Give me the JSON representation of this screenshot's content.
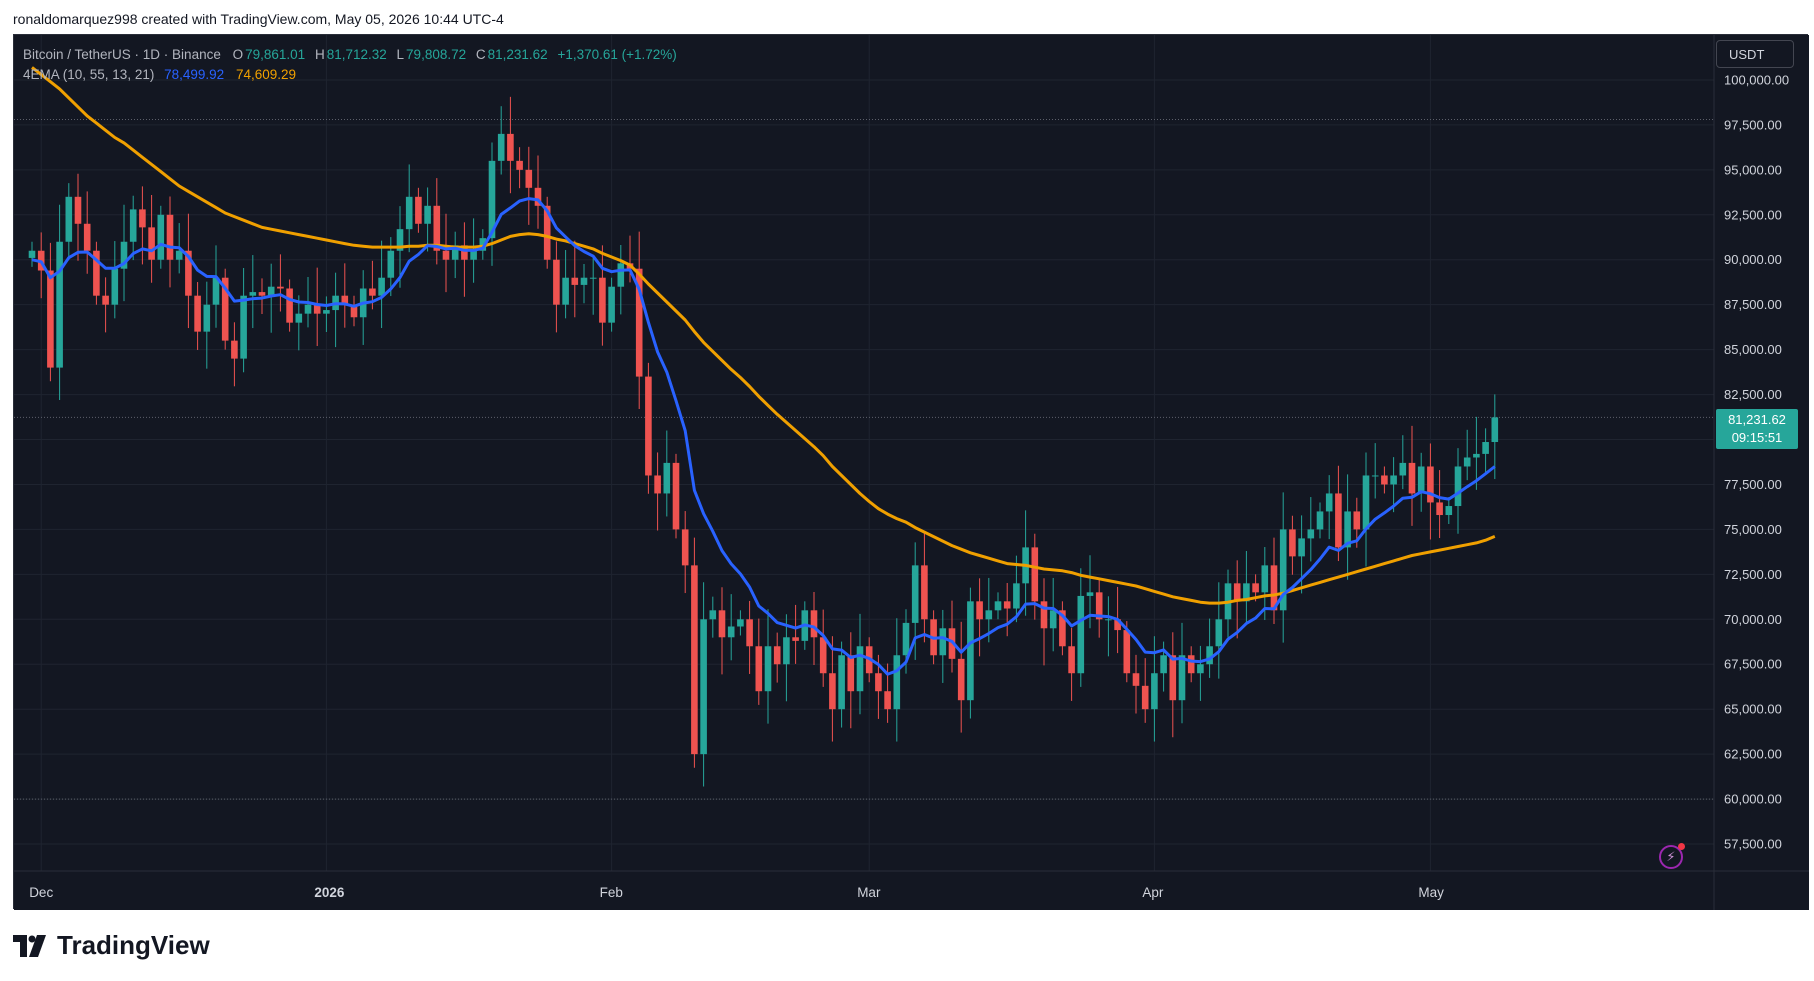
{
  "header": {
    "attribution": "ronaldomarquez998 created with TradingView.com, May 05, 2026 10:44 UTC-4"
  },
  "legend": {
    "symbol": "Bitcoin / TetherUS · 1D · Binance",
    "open_label": "O",
    "open": "79,861.01",
    "high_label": "H",
    "high": "81,712.32",
    "low_label": "L",
    "low": "79,808.72",
    "close_label": "C",
    "close": "81,231.62",
    "change": "+1,370.61 (+1.72%)",
    "indicator": "4EMA (10, 55, 13, 21)",
    "ema_fast": "78,499.92",
    "ema_slow": "74,609.29"
  },
  "currency": "USDT",
  "last_price": {
    "price": "81,231.62",
    "countdown": "09:15:51"
  },
  "brand": {
    "name": "TradingView"
  },
  "colors": {
    "background": "#131722",
    "grid": "#1f2430",
    "up": "#26a69a",
    "down": "#ef5350",
    "ema_fast": "#2962ff",
    "ema_slow": "#f0a000",
    "axis_text": "#d1d4dc"
  },
  "chart_data": {
    "type": "candlestick",
    "ylim": [
      56000,
      102500
    ],
    "y_ticks": [
      "100,000.00",
      "97,500.00",
      "95,000.00",
      "92,500.00",
      "90,000.00",
      "87,500.00",
      "85,000.00",
      "82,500.00",
      "80,000.00",
      "77,500.00",
      "75,000.00",
      "72,500.00",
      "70,000.00",
      "67,500.00",
      "65,000.00",
      "62,500.00",
      "60,000.00",
      "57,500.00"
    ],
    "y_tick_values": [
      100000,
      97500,
      95000,
      92500,
      90000,
      87500,
      85000,
      82500,
      80000,
      77500,
      75000,
      72500,
      70000,
      67500,
      65000,
      62500,
      60000,
      57500
    ],
    "x_labels": [
      {
        "label": "Dec",
        "index": 1
      },
      {
        "label": "2026",
        "index": 32
      },
      {
        "label": "Feb",
        "index": 63
      },
      {
        "label": "Mar",
        "index": 91
      },
      {
        "label": "Apr",
        "index": 122
      },
      {
        "label": "May",
        "index": 152
      }
    ],
    "dotted_levels": [
      97800,
      81231.62,
      60000
    ],
    "closes": [
      90500,
      89400,
      84000,
      91000,
      93500,
      92000,
      90500,
      88000,
      87500,
      89500,
      91000,
      92800,
      91800,
      90000,
      92500,
      90000,
      90500,
      88000,
      86000,
      87500,
      89000,
      85500,
      84500,
      88000,
      88200,
      88000,
      88500,
      88400,
      86500,
      87000,
      87500,
      87000,
      87200,
      88000,
      87500,
      86800,
      88400,
      88000,
      89000,
      90500,
      91700,
      93500,
      92000,
      93000,
      90500,
      90000,
      90800,
      90000,
      90500,
      91200,
      95500,
      97000,
      95500,
      95000,
      94000,
      93000,
      90000,
      87500,
      89000,
      88600,
      89000,
      89000,
      86500,
      88500,
      89800,
      89500,
      83500,
      78000,
      77000,
      78700,
      75000,
      73000,
      62500,
      70000,
      70500,
      69000,
      69600,
      70000,
      68500,
      66000,
      68500,
      67500,
      69000,
      68800,
      70500,
      69000,
      67000,
      65000,
      68000,
      66000,
      68500,
      67000,
      66000,
      65000,
      68000,
      69800,
      73000,
      70000,
      68000,
      69500,
      67800,
      65500,
      71000,
      70000,
      70500,
      71000,
      70600,
      72000,
      74000,
      71000,
      69500,
      70500,
      68500,
      67000,
      71300,
      71500,
      70000,
      70000,
      69400,
      67000,
      66300,
      65000,
      67000,
      68000,
      65500,
      68000,
      67000,
      67500,
      68500,
      70000,
      72000,
      71000,
      72000,
      71500,
      73000,
      70500,
      75000,
      73500,
      74500,
      75000,
      76000,
      77000,
      74000,
      76000,
      75000,
      78000,
      78000,
      77500,
      78000,
      78700,
      77000,
      78500,
      76500,
      75800,
      76300,
      78500,
      79000,
      79200,
      79861.01,
      81231.62
    ],
    "ema_fast": [
      90000,
      89886,
      88998,
      89362,
      90114,
      90412,
      90428,
      89987,
      89530,
      89525,
      89793,
      90340,
      90605,
      90495,
      90860,
      90704,
      90667,
      90182,
      89422,
      89073,
      89059,
      88412,
      87700,
      87754,
      87835,
      87865,
      87981,
      88057,
      87792,
      87648,
      87621,
      87508,
      87452,
      87552,
      87541,
      87407,
      87588,
      87663,
      87906,
      88378,
      89009,
      89917,
      90296,
      90788,
      90736,
      90603,
      90639,
      90523,
      90519,
      90643,
      91527,
      92522,
      92882,
      93267,
      93400,
      93327,
      92722,
      91772,
      91268,
      90783,
      90459,
      90194,
      89522,
      89336,
      89420,
      89435,
      88356,
      86518,
      84870,
      83749,
      82158,
      80493,
      77176,
      75871,
      74895,
      73824,
      73083,
      72523,
      71791,
      70738,
      70331,
      69816,
      69667,
      69509,
      69689,
      69564,
      69098,
      68353,
      68289,
      67873,
      68001,
      67819,
      67488,
      66945,
      67137,
      67621,
      68963,
      69152,
      68943,
      68980,
      68765,
      68171,
      68685,
      68925,
      69211,
      69536,
      69729,
      70142,
      70844,
      70873,
      70623,
      70601,
      70219,
      69634,
      69939,
      70223,
      70183,
      70150,
      69996,
      69452,
      68878,
      68173,
      68141,
      68298,
      67789,
      67828,
      67677,
      67645,
      67800,
      68200,
      68891,
      69274,
      69771,
      70067,
      70600,
      70582,
      71385,
      71770,
      72266,
      72763,
      73352,
      74015,
      73831,
      74225,
      74366,
      75027,
      75568,
      75919,
      76297,
      76736,
      76784,
      77096,
      76988,
      76772,
      76687,
      77017,
      77377,
      77708,
      78098,
      78499.92
    ],
    "ema_slow": [
      100700,
      100300,
      99900,
      99500,
      99000,
      98500,
      98000,
      97600,
      97200,
      96800,
      96500,
      96100,
      95700,
      95300,
      94900,
      94500,
      94100,
      93800,
      93500,
      93200,
      92900,
      92600,
      92400,
      92200,
      92000,
      91800,
      91700,
      91600,
      91500,
      91400,
      91300,
      91200,
      91100,
      91000,
      90900,
      90800,
      90750,
      90700,
      90700,
      90700,
      90700,
      90750,
      90750,
      90800,
      90800,
      90750,
      90700,
      90700,
      90700,
      90750,
      90900,
      91100,
      91300,
      91400,
      91450,
      91400,
      91300,
      91150,
      91050,
      90900,
      90750,
      90600,
      90350,
      90150,
      89950,
      89700,
      89200,
      88650,
      88150,
      87650,
      87150,
      86650,
      86000,
      85400,
      84900,
      84400,
      83900,
      83450,
      82950,
      82400,
      81900,
      81400,
      80950,
      80500,
      80050,
      79600,
      79100,
      78500,
      78000,
      77500,
      77000,
      76550,
      76150,
      75850,
      75600,
      75400,
      75100,
      74850,
      74600,
      74350,
      74100,
      73900,
      73700,
      73550,
      73400,
      73250,
      73100,
      73050,
      73000,
      72900,
      72800,
      72750,
      72700,
      72600,
      72450,
      72350,
      72250,
      72150,
      72050,
      71950,
      71850,
      71700,
      71550,
      71400,
      71250,
      71150,
      71050,
      70950,
      70900,
      70900,
      70950,
      71050,
      71100,
      71200,
      71300,
      71350,
      71450,
      71600,
      71750,
      71900,
      72050,
      72200,
      72350,
      72500,
      72650,
      72800,
      72950,
      73100,
      73250,
      73400,
      73550,
      73650,
      73750,
      73850,
      73950,
      74050,
      74150,
      74250,
      74400,
      74609.29
    ]
  }
}
